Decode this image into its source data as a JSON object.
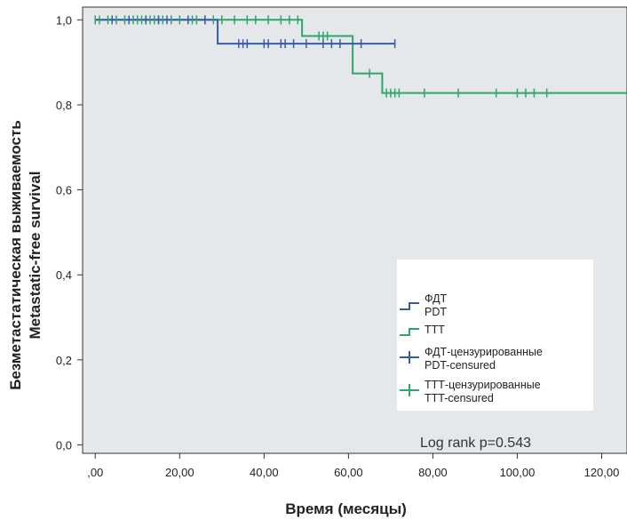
{
  "chart_data": {
    "type": "line",
    "step": true,
    "xlabel": "Время (месяцы)",
    "ylabel": [
      "Безметастатическая выживаемость",
      "Metastatic-free survival"
    ],
    "xlim": [
      -3,
      126
    ],
    "ylim": [
      -0.02,
      1.03
    ],
    "x_ticks": [
      0,
      20,
      40,
      60,
      80,
      100,
      120
    ],
    "x_tick_labels": [
      ",00",
      "20,00",
      "40,00",
      "60,00",
      "80,00",
      "100,00",
      "120,00"
    ],
    "y_ticks": [
      0,
      0.2,
      0.4,
      0.6,
      0.8,
      1.0
    ],
    "y_tick_labels": [
      "0,0",
      "0,2",
      "0,4",
      "0,6",
      "0,8",
      "1,0"
    ],
    "annotation": "Log rank p=0.543",
    "legend_position": "bottom-right",
    "grid": false,
    "background": "#e4e8ea",
    "series": [
      {
        "key": "pdt",
        "legend": [
          "ФДТ",
          "PDT"
        ],
        "censored_legend": [
          "ФДТ-цензурированные",
          "PDT-censured"
        ],
        "color": "#3a5aa8",
        "steps": [
          [
            0,
            1.0
          ],
          [
            29,
            1.0
          ],
          [
            29,
            0.944
          ],
          [
            71,
            0.944
          ]
        ],
        "censored_x": [
          4,
          8,
          12,
          15,
          17,
          22,
          26,
          34,
          35,
          36,
          40,
          41,
          44,
          45,
          47,
          50,
          54,
          56,
          58,
          63,
          71
        ]
      },
      {
        "key": "ttt",
        "legend": [
          "ТТТ",
          "TTT"
        ],
        "censored_legend": [
          "ТТТ-цензурированные",
          "TTT-censured"
        ],
        "color": "#2ea56a",
        "steps": [
          [
            0,
            1.0
          ],
          [
            49,
            1.0
          ],
          [
            49,
            0.962
          ],
          [
            61,
            0.962
          ],
          [
            61,
            0.874
          ],
          [
            68,
            0.874
          ],
          [
            68,
            0.828
          ],
          [
            126,
            0.828
          ]
        ],
        "censored_x": [
          0,
          1,
          3,
          5,
          7,
          9,
          10,
          11,
          12,
          13,
          14,
          15,
          16,
          18,
          20,
          23,
          24,
          26,
          28,
          30,
          33,
          36,
          38,
          41,
          44,
          46,
          48,
          53,
          54,
          55,
          65,
          69,
          70,
          71,
          72,
          78,
          86,
          95,
          100,
          102,
          104,
          107
        ]
      }
    ]
  }
}
